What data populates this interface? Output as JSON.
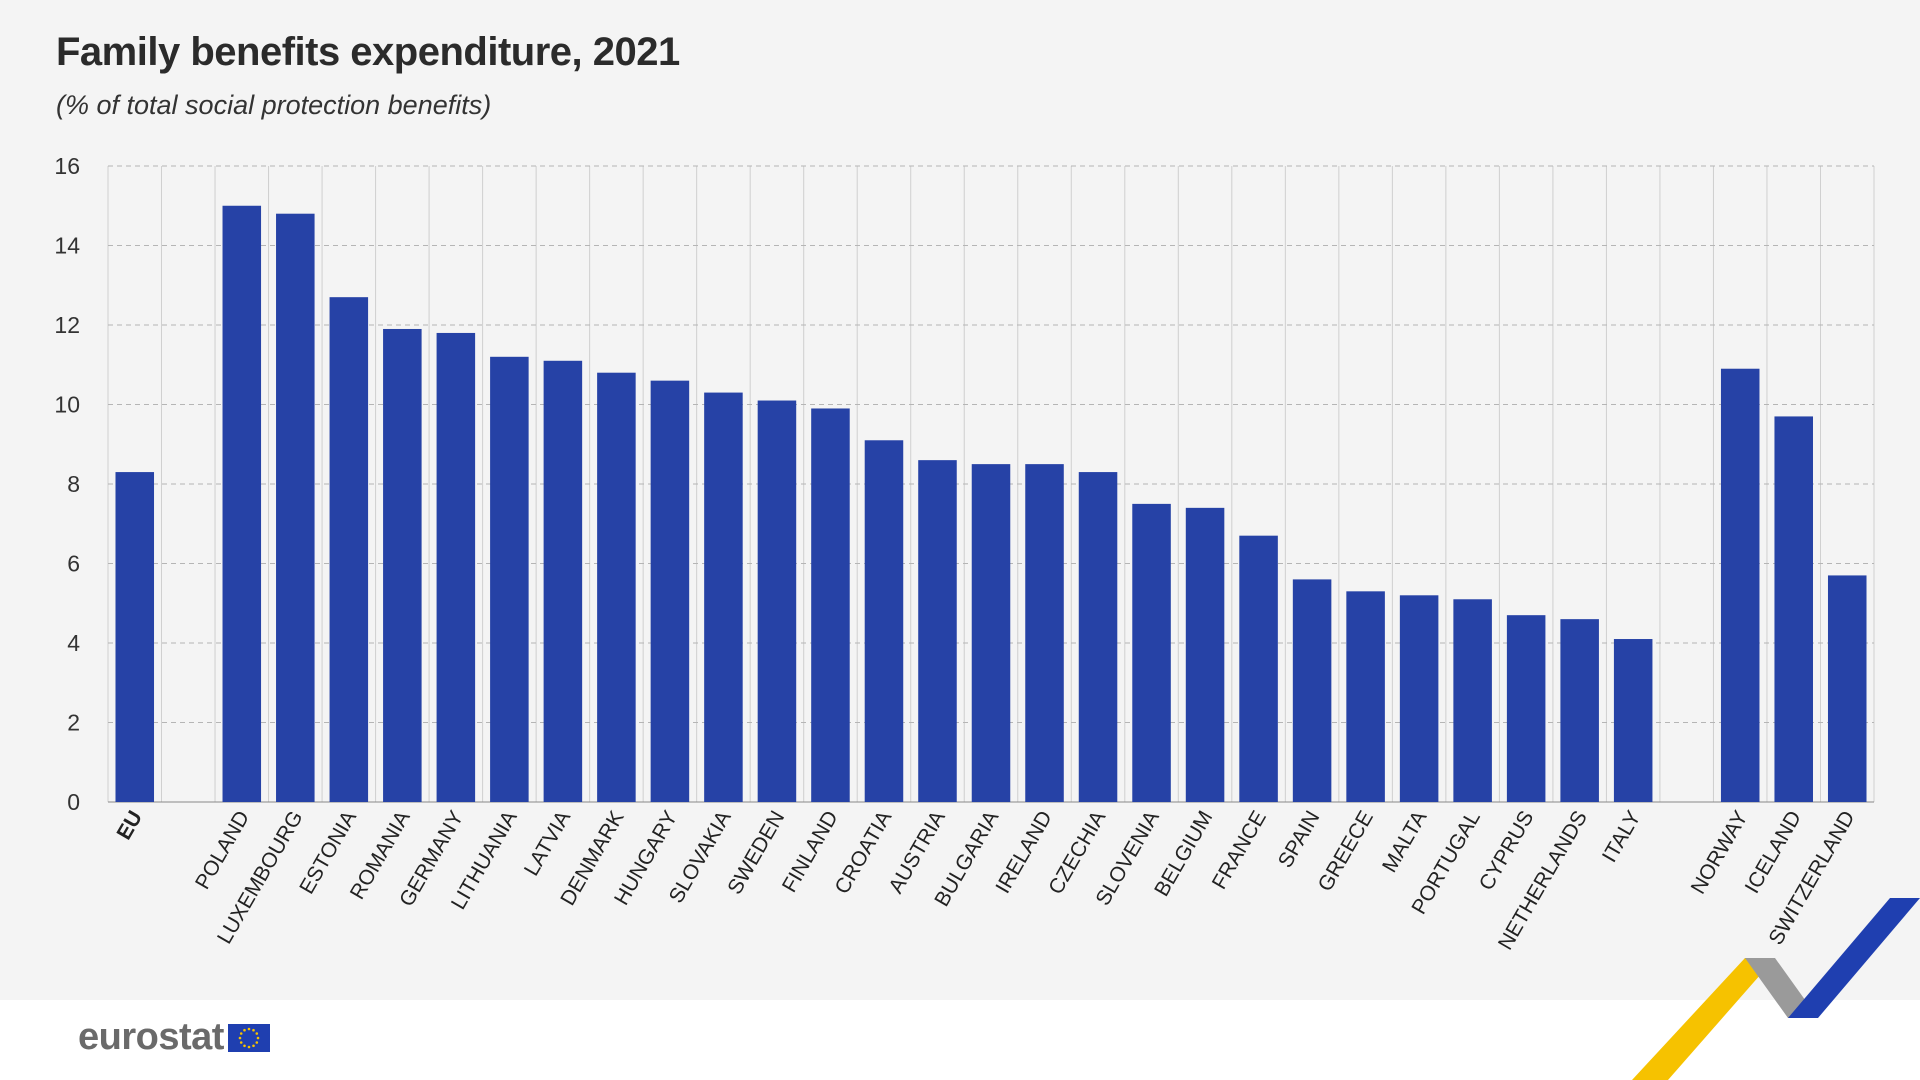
{
  "header": {
    "title": "Family benefits expenditure, 2021",
    "subtitle": "(% of total social protection benefits)"
  },
  "brand": {
    "logo_text": "eurostat",
    "flag_icon": "eu-flag-icon",
    "bar_color": "#2642a6",
    "ribbon_colors": [
      "#f6c200",
      "#9a9a9a",
      "#1f3fb0"
    ]
  },
  "chart_data": {
    "type": "bar",
    "title": "Family benefits expenditure, 2021",
    "subtitle": "(% of total social protection benefits)",
    "xlabel": "",
    "ylabel": "",
    "ylim": [
      0,
      16
    ],
    "yticks": [
      "0",
      "2",
      "4",
      "6",
      "8",
      "10",
      "12",
      "14",
      "16"
    ],
    "grid": true,
    "categories": [
      "EU",
      "",
      "POLAND",
      "LUXEMBOURG",
      "ESTONIA",
      "ROMANIA",
      "GERMANY",
      "LITHUANIA",
      "LATVIA",
      "DENMARK",
      "HUNGARY",
      "SLOVAKIA",
      "SWEDEN",
      "FINLAND",
      "CROATIA",
      "AUSTRIA",
      "BULGARIA",
      "IRELAND",
      "CZECHIA",
      "SLOVENIA",
      "BELGIUM",
      "FRANCE",
      "SPAIN",
      "GREECE",
      "MALTA",
      "PORTUGAL",
      "CYPRUS",
      "NETHERLANDS",
      "ITALY",
      "",
      "NORWAY",
      "ICELAND",
      "SWITZERLAND"
    ],
    "values": [
      8.3,
      null,
      15.0,
      14.8,
      12.7,
      11.9,
      11.8,
      11.2,
      11.1,
      10.8,
      10.6,
      10.3,
      10.1,
      9.9,
      9.1,
      8.6,
      8.5,
      8.5,
      8.3,
      7.5,
      7.4,
      6.7,
      5.6,
      5.3,
      5.2,
      5.1,
      4.7,
      4.6,
      4.1,
      null,
      10.9,
      9.7,
      5.7
    ]
  }
}
